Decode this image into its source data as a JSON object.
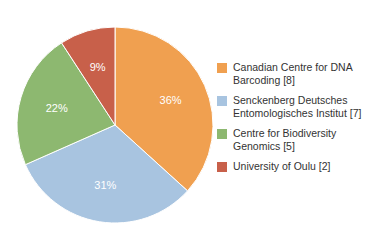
{
  "chart_data": {
    "type": "pie",
    "categories": [
      "Canadian Centre for DNA\nBarcoding [8]",
      "Senckenberg Deutsches\nEntomologisches Institut [7]",
      "Centre for Biodiversity\nGenomics [5]",
      "University of Oulu [2]"
    ],
    "values": [
      36,
      31,
      22,
      9
    ],
    "value_labels": [
      "36%",
      "31%",
      "22%",
      "9%"
    ],
    "colors": [
      "#f0a050",
      "#a8c4e0",
      "#8db870",
      "#c8604a"
    ],
    "data_labels": true,
    "legend": "right"
  }
}
